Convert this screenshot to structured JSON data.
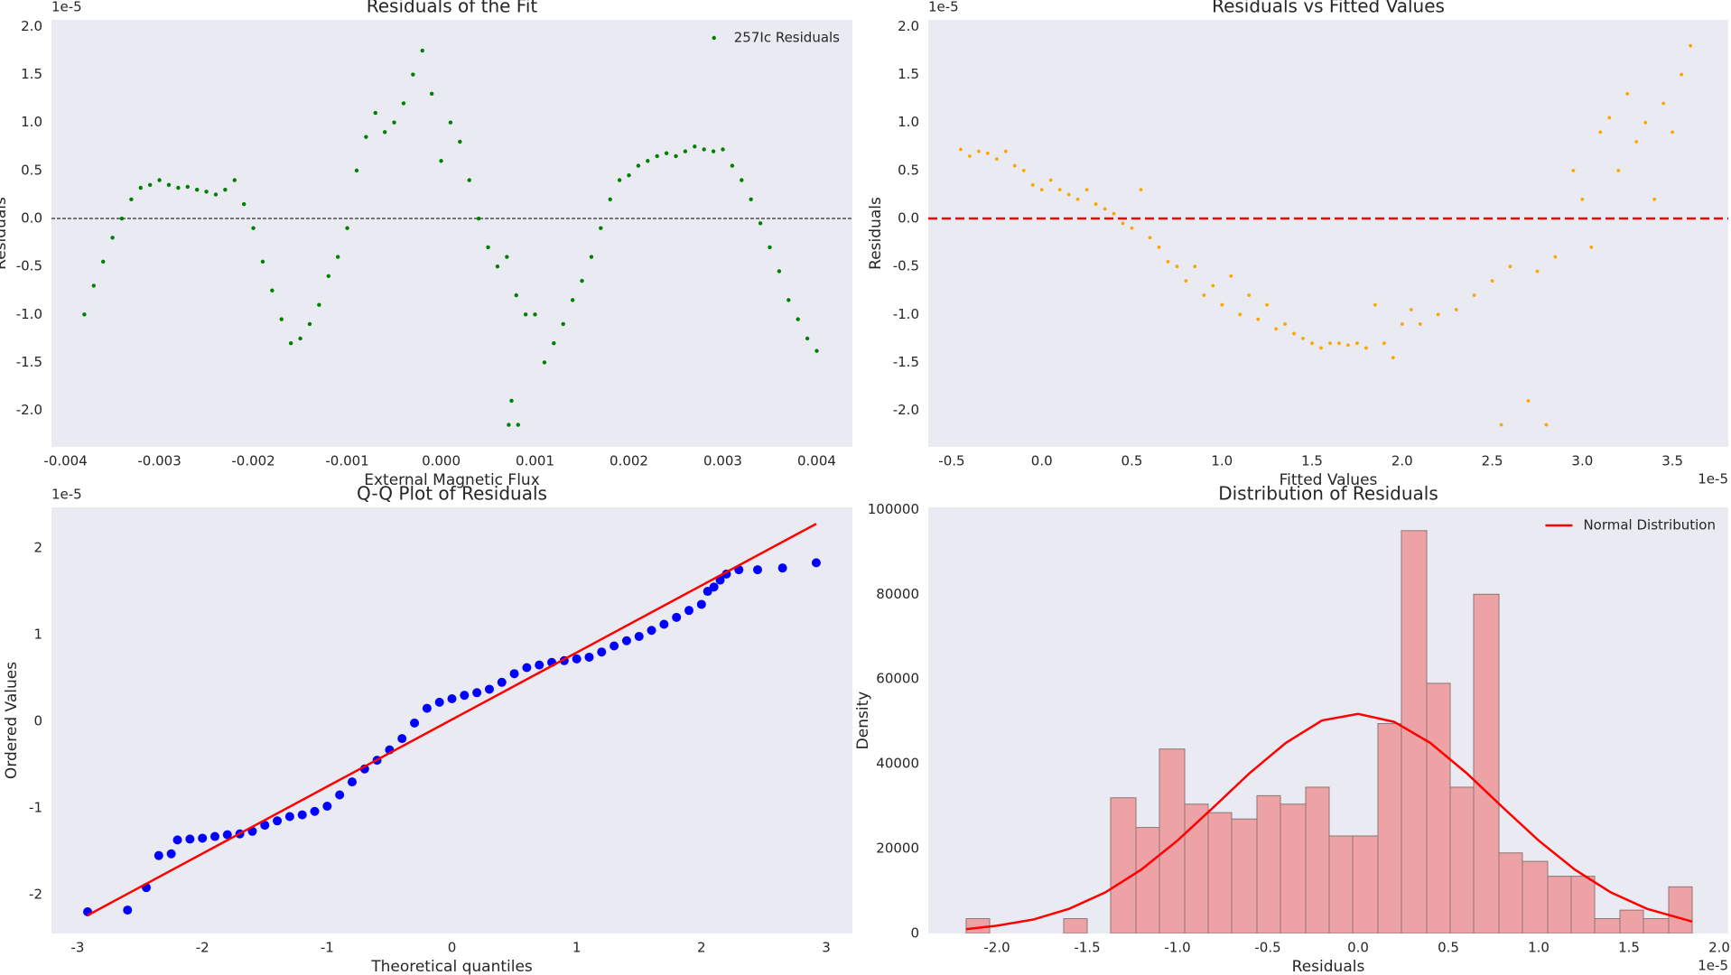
{
  "chart_data": [
    {
      "type": "scatter",
      "title": "Residuals of the Fit",
      "xlabel": "External Magnetic Flux",
      "ylabel": "Residuals",
      "y_offset_label": "1e-5",
      "legend": "upper right",
      "reference_line": {
        "value": 0,
        "color": "black",
        "style": "dashed"
      },
      "xlim": [
        -0.00415,
        0.00438
      ],
      "ylim": [
        -2.38,
        2.07
      ],
      "xticks": [
        -0.004,
        -0.003,
        -0.002,
        -0.001,
        {
          "value": 0,
          "label": "0.000"
        },
        0.001,
        0.002,
        0.003,
        0.004
      ],
      "yticks": [
        {
          "value": -2,
          "label": "-2.0"
        },
        -1.5,
        {
          "value": -1,
          "label": "-1.0"
        },
        -0.5,
        {
          "value": 0,
          "label": "0.0"
        },
        0.5,
        {
          "value": 1,
          "label": "1.0"
        },
        1.5,
        {
          "value": 2,
          "label": "2.0"
        }
      ],
      "series": [
        {
          "name": "257Ic Residuals",
          "color": "green",
          "x": [
            -0.0038,
            -0.0037,
            -0.0036,
            -0.0035,
            -0.0034,
            -0.0033,
            -0.0032,
            -0.0031,
            -0.003,
            -0.0029,
            -0.0028,
            -0.0027,
            -0.0026,
            -0.0025,
            -0.0024,
            -0.0023,
            -0.0022,
            -0.0021,
            -0.002,
            -0.0019,
            -0.0018,
            -0.0017,
            -0.0016,
            -0.0015,
            -0.0014,
            -0.0013,
            -0.0012,
            -0.0011,
            -0.001,
            -0.0009,
            -0.0008,
            -0.0007,
            -0.0006,
            -0.0005,
            -0.0004,
            -0.0003,
            -0.0002,
            -0.0001,
            0,
            0.0001,
            0.0002,
            0.0003,
            0.0004,
            0.0005,
            0.0006,
            0.0007,
            0.0008,
            0.0009,
            0.001,
            0.0011,
            0.0012,
            0.0013,
            0.0014,
            0.0015,
            0.0016,
            0.0017,
            0.0018,
            0.0019,
            0.002,
            0.0021,
            0.0022,
            0.0023,
            0.0024,
            0.0025,
            0.0026,
            0.0027,
            0.0028,
            0.0029,
            0.003,
            0.0031,
            0.0032,
            0.0033,
            0.0034,
            0.0035,
            0.0036,
            0.0037,
            0.0038,
            0.0039,
            0.004,
            0.00072,
            0.00075,
            0.00082
          ],
          "values": [
            -1.0,
            -0.7,
            -0.45,
            -0.2,
            0.0,
            0.2,
            0.32,
            0.35,
            0.4,
            0.35,
            0.32,
            0.33,
            0.3,
            0.28,
            0.25,
            0.3,
            0.4,
            0.15,
            -0.1,
            -0.45,
            -0.75,
            -1.05,
            -1.3,
            -1.25,
            -1.1,
            -0.9,
            -0.6,
            -0.4,
            -0.1,
            0.5,
            0.85,
            1.1,
            0.9,
            1.0,
            1.2,
            1.5,
            1.75,
            1.3,
            0.6,
            1.0,
            0.8,
            0.4,
            0.0,
            -0.3,
            -0.5,
            -0.4,
            -0.8,
            -1.0,
            -1.0,
            -1.5,
            -1.3,
            -1.1,
            -0.85,
            -0.65,
            -0.4,
            -0.1,
            0.2,
            0.4,
            0.45,
            0.55,
            0.6,
            0.65,
            0.68,
            0.65,
            0.7,
            0.75,
            0.72,
            0.7,
            0.72,
            0.55,
            0.4,
            0.2,
            -0.05,
            -0.3,
            -0.55,
            -0.85,
            -1.05,
            -1.25,
            -1.38,
            -2.15,
            -1.9,
            -2.15
          ]
        }
      ]
    },
    {
      "type": "scatter",
      "title": "Residuals vs Fitted Values",
      "xlabel": "Fitted Values",
      "ylabel": "Residuals",
      "x_offset_label": "1e-5",
      "y_offset_label": "1e-5",
      "reference_line": {
        "value": 0,
        "color": "red",
        "style": "dashed"
      },
      "xlim": [
        -0.63,
        3.81
      ],
      "ylim": [
        -2.38,
        2.07
      ],
      "xticks": [
        -0.5,
        {
          "value": 0,
          "label": "0.0"
        },
        0.5,
        {
          "value": 1,
          "label": "1.0"
        },
        1.5,
        {
          "value": 2,
          "label": "2.0"
        },
        2.5,
        {
          "value": 3,
          "label": "3.0"
        },
        3.5
      ],
      "yticks": [
        {
          "value": -2,
          "label": "-2.0"
        },
        -1.5,
        {
          "value": -1,
          "label": "-1.0"
        },
        -0.5,
        {
          "value": 0,
          "label": "0.0"
        },
        0.5,
        {
          "value": 1,
          "label": "1.0"
        },
        1.5,
        {
          "value": 2,
          "label": "2.0"
        }
      ],
      "series": [
        {
          "color": "orange",
          "x": [
            -0.45,
            -0.4,
            -0.35,
            -0.3,
            -0.25,
            -0.2,
            -0.15,
            -0.1,
            -0.05,
            0,
            0.05,
            0.1,
            0.15,
            0.2,
            0.25,
            0.3,
            0.35,
            0.4,
            0.45,
            0.5,
            0.55,
            0.6,
            0.65,
            0.7,
            0.75,
            0.8,
            0.85,
            0.9,
            0.95,
            1.0,
            1.05,
            1.1,
            1.15,
            1.2,
            1.25,
            1.3,
            1.35,
            1.4,
            1.45,
            1.5,
            1.55,
            1.6,
            1.65,
            1.7,
            1.75,
            1.8,
            1.85,
            1.9,
            1.95,
            2.0,
            2.05,
            2.1,
            2.2,
            2.3,
            2.4,
            2.5,
            2.55,
            2.6,
            2.7,
            2.75,
            2.8,
            2.85,
            2.95,
            3.0,
            3.05,
            3.1,
            3.15,
            3.2,
            3.25,
            3.3,
            3.35,
            3.4,
            3.45,
            3.5,
            3.55,
            3.6
          ],
          "values": [
            0.72,
            0.65,
            0.7,
            0.68,
            0.62,
            0.7,
            0.55,
            0.5,
            0.35,
            0.3,
            0.4,
            0.3,
            0.25,
            0.2,
            0.3,
            0.15,
            0.1,
            0.05,
            -0.05,
            -0.1,
            0.3,
            -0.2,
            -0.3,
            -0.45,
            -0.5,
            -0.65,
            -0.5,
            -0.8,
            -0.7,
            -0.9,
            -0.6,
            -1.0,
            -0.8,
            -1.05,
            -0.9,
            -1.15,
            -1.1,
            -1.2,
            -1.25,
            -1.3,
            -1.35,
            -1.3,
            -1.3,
            -1.32,
            -1.3,
            -1.35,
            -0.9,
            -1.3,
            -1.45,
            -1.1,
            -0.95,
            -1.1,
            -1.0,
            -0.95,
            -0.8,
            -0.65,
            -2.15,
            -0.5,
            -1.9,
            -0.55,
            -2.15,
            -0.4,
            0.5,
            0.2,
            -0.3,
            0.9,
            1.05,
            0.5,
            1.3,
            0.8,
            1.0,
            0.2,
            1.2,
            0.9,
            1.5,
            1.8
          ]
        }
      ]
    },
    {
      "type": "qq",
      "title": "Q-Q Plot of Residuals",
      "xlabel": "Theoretical quantiles",
      "ylabel": "Ordered Values",
      "y_offset_label": "1e-5",
      "xlim": [
        -3.21,
        3.21
      ],
      "ylim": [
        -2.45,
        2.47
      ],
      "xticks": [
        -3,
        -2,
        -1,
        0,
        1,
        2,
        3
      ],
      "yticks": [
        -2,
        -1,
        0,
        1,
        2
      ],
      "series": [
        {
          "color": "blue",
          "x": [
            -2.92,
            -2.6,
            -2.45,
            -2.35,
            -2.25,
            -2.2,
            -2.1,
            -2.0,
            -1.9,
            -1.8,
            -1.7,
            -1.6,
            -1.5,
            -1.4,
            -1.3,
            -1.2,
            -1.1,
            -1.0,
            -0.9,
            -0.8,
            -0.7,
            -0.6,
            -0.5,
            -0.4,
            -0.3,
            -0.2,
            -0.1,
            0,
            0.1,
            0.2,
            0.3,
            0.4,
            0.5,
            0.6,
            0.7,
            0.8,
            0.9,
            1.0,
            1.1,
            1.2,
            1.3,
            1.4,
            1.5,
            1.6,
            1.7,
            1.8,
            1.9,
            2.0,
            2.05,
            2.1,
            2.15,
            2.2,
            2.3,
            2.45,
            2.65,
            2.92
          ],
          "values": [
            -2.2,
            -2.18,
            -1.92,
            -1.55,
            -1.53,
            -1.37,
            -1.36,
            -1.35,
            -1.33,
            -1.31,
            -1.3,
            -1.27,
            -1.2,
            -1.15,
            -1.1,
            -1.08,
            -1.04,
            -0.98,
            -0.85,
            -0.7,
            -0.55,
            -0.45,
            -0.33,
            -0.2,
            -0.02,
            0.15,
            0.22,
            0.26,
            0.3,
            0.33,
            0.37,
            0.45,
            0.55,
            0.62,
            0.65,
            0.68,
            0.7,
            0.72,
            0.74,
            0.8,
            0.87,
            0.93,
            0.98,
            1.05,
            1.12,
            1.2,
            1.28,
            1.35,
            1.5,
            1.55,
            1.63,
            1.7,
            1.75,
            1.75,
            1.77,
            1.83
          ]
        }
      ],
      "fit_line": {
        "color": "red",
        "x": [
          -2.92,
          2.92
        ],
        "values": [
          -2.24,
          2.28
        ]
      }
    },
    {
      "type": "histogram",
      "title": "Distribution of Residuals",
      "xlabel": "Residuals",
      "ylabel": "Density",
      "x_offset_label": "1e-5",
      "legend": "upper right",
      "color": "#eda3a6",
      "edgecolor": "#8e7474",
      "xlim": [
        -2.38,
        2.05
      ],
      "ylim": [
        0,
        100500
      ],
      "xticks": [
        {
          "value": -2,
          "label": "-2.0"
        },
        -1.5,
        {
          "value": -1,
          "label": "-1.0"
        },
        -0.5,
        {
          "value": 0,
          "label": "0.0"
        },
        0.5,
        {
          "value": 1,
          "label": "1.0"
        },
        1.5,
        {
          "value": 2,
          "label": "2.0"
        }
      ],
      "yticks": [
        0,
        20000,
        40000,
        60000,
        80000,
        100000
      ],
      "bins": [
        -2.17,
        -2.04,
        -1.9,
        -1.77,
        -1.63,
        -1.5,
        -1.37,
        -1.23,
        -1.1,
        -0.96,
        -0.83,
        -0.7,
        -0.56,
        -0.43,
        -0.29,
        -0.16,
        -0.03,
        0.11,
        0.24,
        0.38,
        0.51,
        0.64,
        0.78,
        0.91,
        1.05,
        1.18,
        1.31,
        1.45,
        1.58,
        1.72,
        1.85
      ],
      "counts": [
        3500,
        0,
        0,
        0,
        3500,
        0,
        32000,
        25000,
        43500,
        30500,
        28500,
        27000,
        32500,
        30500,
        34500,
        23000,
        23000,
        49500,
        95000,
        59000,
        34500,
        80000,
        19000,
        17000,
        13500,
        13500,
        3500,
        5500,
        3500,
        11000
      ],
      "series": [
        {
          "name": "Normal Distribution",
          "color": "red",
          "x": [
            -2.17,
            -2.0,
            -1.8,
            -1.6,
            -1.4,
            -1.2,
            -1.0,
            -0.8,
            -0.6,
            -0.4,
            -0.2,
            0,
            0.2,
            0.4,
            0.6,
            0.8,
            1.0,
            1.2,
            1.4,
            1.6,
            1.85
          ],
          "values": [
            1013,
            1835,
            3268,
            5822,
            9686,
            15068,
            21917,
            29795,
            37845,
            44952,
            50246,
            51796,
            49909,
            44952,
            37850,
            29785,
            21911,
            15069,
            9687,
            5822,
            2802
          ]
        }
      ]
    }
  ]
}
